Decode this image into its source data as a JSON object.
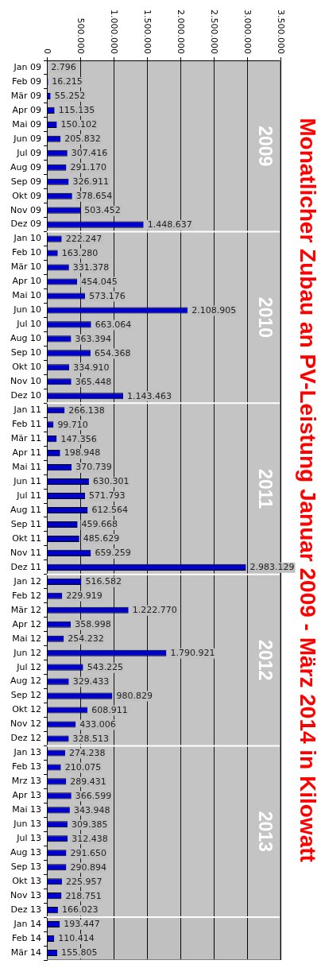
{
  "chart_data": {
    "type": "bar",
    "orientation": "horizontal",
    "title": "Monatlicher Zubau an PV-Leistung Januar 2009 - März 2014 in Kilowatt",
    "categories": [
      "Jan 09",
      "Feb 09",
      "Mär 09",
      "Apr 09",
      "Mai 09",
      "Jun 09",
      "Jul 09",
      "Aug 09",
      "Sep 09",
      "Okt 09",
      "Nov 09",
      "Dez 09",
      "Jan 10",
      "Feb 10",
      "Mär 10",
      "Apr 10",
      "Mai 10",
      "Jun 10",
      "Jul 10",
      "Aug 10",
      "Sep 10",
      "Okt 10",
      "Nov 10",
      "Dez 10",
      "Jan 11",
      "Feb 11",
      "Mär 11",
      "Apr 11",
      "Mai 11",
      "Jun 11",
      "Jul 11",
      "Aug 11",
      "Sep 11",
      "Okt 11",
      "Nov 11",
      "Dez 11",
      "Jan 12",
      "Feb 12",
      "Mär 12",
      "Apr 12",
      "Mai 12",
      "Jun 12",
      "Jul 12",
      "Aug 12",
      "Sep 12",
      "Okt 12",
      "Nov 12",
      "Dez 12",
      "Jan 13",
      "Feb 13",
      "Mrz 13",
      "Apr 13",
      "Mai 13",
      "Jun 13",
      "Jul 13",
      "Aug 13",
      "Sep 13",
      "Okt 13",
      "Nov 13",
      "Dez 13",
      "Jan 14",
      "Feb 14",
      "Mär 14"
    ],
    "values": [
      2796,
      16215,
      55252,
      115135,
      150102,
      205832,
      307416,
      291170,
      326911,
      378654,
      503452,
      1448637,
      222247,
      163280,
      331378,
      454045,
      573176,
      2108905,
      663064,
      363394,
      654368,
      334910,
      365448,
      1143463,
      266138,
      99710,
      147356,
      198948,
      370739,
      630301,
      571793,
      612564,
      459668,
      485629,
      659259,
      2983129,
      516582,
      229919,
      1222770,
      358998,
      254232,
      1790921,
      543225,
      329433,
      980829,
      608911,
      433006,
      328513,
      274238,
      210075,
      289431,
      366599,
      343948,
      309385,
      312438,
      291650,
      290894,
      225957,
      218751,
      166023,
      193447,
      110414,
      155805
    ],
    "value_labels": [
      "2.796",
      "16.215",
      "55.252",
      "115.135",
      "150.102",
      "205.832",
      "307.416",
      "291.170",
      "326.911",
      "378.654",
      "503.452",
      "1.448.637",
      "222.247",
      "163.280",
      "331.378",
      "454.045",
      "573.176",
      "2.108.905",
      "663.064",
      "363.394",
      "654.368",
      "334.910",
      "365.448",
      "1.143.463",
      "266.138",
      "99.710",
      "147.356",
      "198.948",
      "370.739",
      "630.301",
      "571.793",
      "612.564",
      "459.668",
      "485.629",
      "659.259",
      "2.983.129",
      "516.582",
      "229.919",
      "1.222.770",
      "358.998",
      "254.232",
      "1.790.921",
      "543.225",
      "329.433",
      "980.829",
      "608.911",
      "433.006",
      "328.513",
      "274.238",
      "210.075",
      "289.431",
      "366.599",
      "343.948",
      "309.385",
      "312.438",
      "291.650",
      "290.894",
      "225.957",
      "218.751",
      "166.023",
      "193.447",
      "110.414",
      "155.805"
    ],
    "color": "#0000cc",
    "xlim": [
      0,
      3500000
    ],
    "xticks": [
      0,
      {
        "value": 500000,
        "label": "500.000"
      },
      {
        "value": 1000000,
        "label": "1.000.000"
      },
      {
        "value": 1500000,
        "label": "1.500.000"
      },
      {
        "value": 2000000,
        "label": "2.000.000"
      },
      {
        "value": 2500000,
        "label": "2.500.000"
      },
      {
        "value": 3000000,
        "label": "3.000.000"
      },
      {
        "value": 3500000,
        "label": "3.500.000"
      }
    ],
    "grid": "x",
    "bands": [
      {
        "axis": "y",
        "from": "Jan 09",
        "to": "Dez 09",
        "label": "2009",
        "color": "#ffffff"
      },
      {
        "axis": "y",
        "from": "Jan 10",
        "to": "Dez 10",
        "label": "2010",
        "color": "#ffffff"
      },
      {
        "axis": "y",
        "from": "Jan 11",
        "to": "Dez 11",
        "label": "2011",
        "color": "#ffffff"
      },
      {
        "axis": "y",
        "from": "Jan 12",
        "to": "Dez 12",
        "label": "2012",
        "color": "#ffffff"
      },
      {
        "axis": "y",
        "from": "Jan 13",
        "to": "Dez 13",
        "label": "2013",
        "color": "#ffffff"
      }
    ]
  }
}
